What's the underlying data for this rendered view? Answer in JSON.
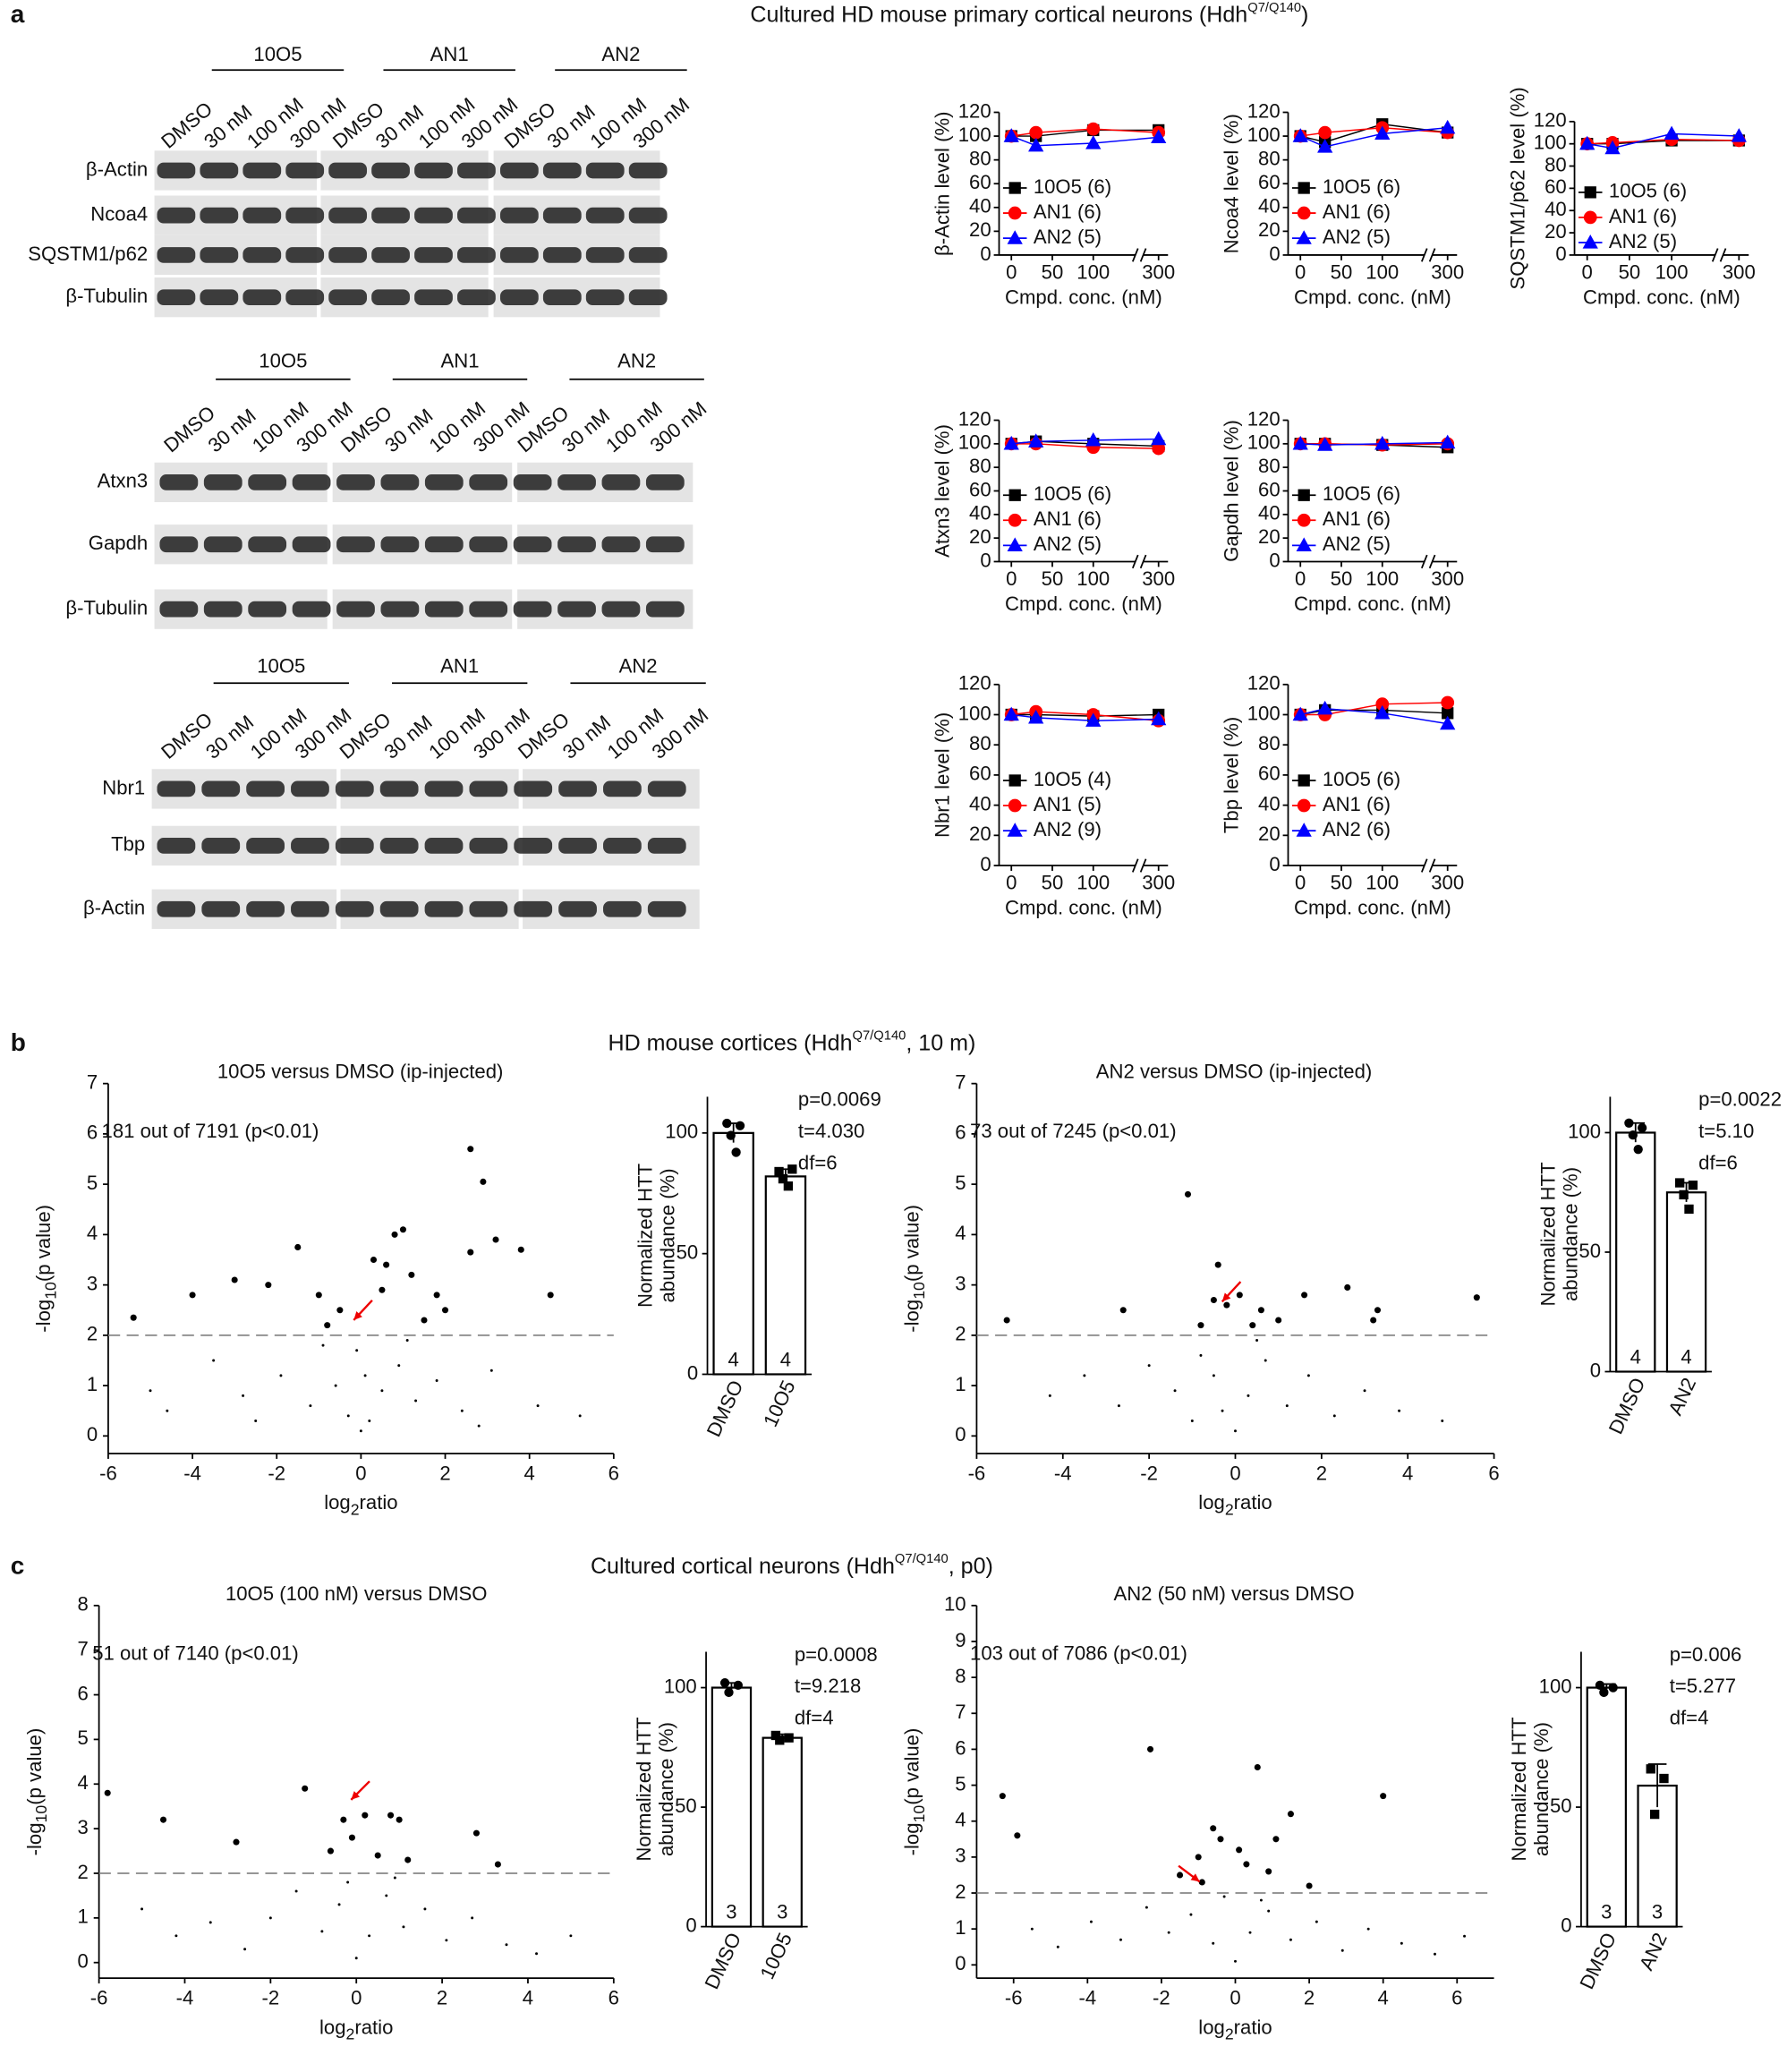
{
  "headers": [
    {
      "label": "a",
      "text": "Cultured HD mouse primary cortical neurons (Hdh",
      "sup": "Q7/Q140",
      "end": ")"
    },
    {
      "label": "b",
      "text": "HD mouse cortices (Hdh",
      "sup": "Q7/Q140",
      "end": ", 10 m)"
    },
    {
      "label": "c",
      "text": "Cultured cortical neurons (Hdh",
      "sup": "Q7/Q140",
      "end": ", p0)"
    }
  ],
  "blots": [
    {
      "groups": [
        "10O5",
        "AN1",
        "AN2"
      ],
      "lanes": [
        "DMSO",
        "30 nM",
        "100 nM",
        "300 nM"
      ],
      "rows": [
        "β-Actin",
        "Ncoa4",
        "SQSTM1/p62",
        "β-Tubulin"
      ]
    },
    {
      "groups": [
        "10O5",
        "AN1",
        "AN2"
      ],
      "lanes": [
        "DMSO",
        "30 nM",
        "100 nM",
        "300 nM"
      ],
      "rows": [
        "Atxn3",
        "Gapdh",
        "β-Tubulin"
      ]
    },
    {
      "groups": [
        "10O5",
        "AN1",
        "AN2"
      ],
      "lanes": [
        "DMSO",
        "30 nM",
        "100 nM",
        "300 nM"
      ],
      "rows": [
        "Nbr1",
        "Tbp",
        "β-Actin"
      ]
    }
  ],
  "chart_data": [
    {
      "type": "line",
      "y_label": "β-Actin level (%)",
      "x_label": "Cmpd. conc. (nM)",
      "x": [
        0,
        30,
        100,
        300
      ],
      "xlim": [
        -15,
        320
      ],
      "axis_break": [
        150,
        270
      ],
      "xticks": [
        0,
        50,
        100,
        300
      ],
      "ylim": [
        0,
        120
      ],
      "yticks": [
        0,
        20,
        40,
        60,
        80,
        100,
        120
      ],
      "series": [
        {
          "name": "10O5 (6)",
          "color": "#000000",
          "marker": "square",
          "values": [
            100,
            100,
            105,
            105
          ]
        },
        {
          "name": "AN1 (6)",
          "color": "#ff0000",
          "marker": "circle",
          "values": [
            100,
            103,
            106,
            103
          ]
        },
        {
          "name": "AN2 (5)",
          "color": "#0000ff",
          "marker": "triangle",
          "values": [
            100,
            92,
            94,
            99
          ]
        }
      ]
    },
    {
      "type": "line",
      "y_label": "Ncoa4 level (%)",
      "x_label": "Cmpd. conc. (nM)",
      "x": [
        0,
        30,
        100,
        300
      ],
      "xlim": [
        -15,
        320
      ],
      "axis_break": [
        150,
        270
      ],
      "xticks": [
        0,
        50,
        100,
        300
      ],
      "ylim": [
        0,
        120
      ],
      "yticks": [
        0,
        20,
        40,
        60,
        80,
        100,
        120
      ],
      "series": [
        {
          "name": "10O5 (6)",
          "color": "#000000",
          "marker": "square",
          "values": [
            100,
            95,
            110,
            103
          ]
        },
        {
          "name": "AN1 (6)",
          "color": "#ff0000",
          "marker": "circle",
          "values": [
            100,
            103,
            107,
            103
          ]
        },
        {
          "name": "AN2 (5)",
          "color": "#0000ff",
          "marker": "triangle",
          "values": [
            100,
            91,
            102,
            107
          ]
        }
      ]
    },
    {
      "type": "line",
      "y_label": "SQSTM1/p62 level (%)",
      "x_label": "Cmpd. conc. (nM)",
      "x": [
        0,
        30,
        100,
        300
      ],
      "xlim": [
        -15,
        320
      ],
      "axis_break": [
        150,
        270
      ],
      "xticks": [
        0,
        50,
        100,
        300
      ],
      "ylim": [
        0,
        120
      ],
      "yticks": [
        0,
        20,
        40,
        60,
        80,
        100,
        120
      ],
      "series": [
        {
          "name": "10O5 (6)",
          "color": "#000000",
          "marker": "square",
          "values": [
            100,
            100,
            103,
            103
          ]
        },
        {
          "name": "AN1 (6)",
          "color": "#ff0000",
          "marker": "circle",
          "values": [
            100,
            101,
            104,
            103
          ]
        },
        {
          "name": "AN2 (5)",
          "color": "#0000ff",
          "marker": "triangle",
          "values": [
            100,
            96,
            109,
            107
          ]
        }
      ]
    },
    {
      "type": "line",
      "y_label": "Atxn3 level (%)",
      "x_label": "Cmpd. conc. (nM)",
      "x": [
        0,
        30,
        100,
        300
      ],
      "xlim": [
        -15,
        320
      ],
      "axis_break": [
        150,
        270
      ],
      "xticks": [
        0,
        50,
        100,
        300
      ],
      "ylim": [
        0,
        120
      ],
      "yticks": [
        0,
        20,
        40,
        60,
        80,
        100,
        120
      ],
      "series": [
        {
          "name": "10O5 (6)",
          "color": "#000000",
          "marker": "square",
          "values": [
            100,
            102,
            100,
            98
          ]
        },
        {
          "name": "AN1 (6)",
          "color": "#ff0000",
          "marker": "circle",
          "values": [
            100,
            100,
            97,
            96
          ]
        },
        {
          "name": "AN2 (5)",
          "color": "#0000ff",
          "marker": "triangle",
          "values": [
            100,
            102,
            103,
            104
          ]
        }
      ]
    },
    {
      "type": "line",
      "y_label": "Gapdh level (%)",
      "x_label": "Cmpd. conc. (nM)",
      "x": [
        0,
        30,
        100,
        300
      ],
      "xlim": [
        -15,
        320
      ],
      "axis_break": [
        150,
        270
      ],
      "xticks": [
        0,
        50,
        100,
        300
      ],
      "ylim": [
        0,
        120
      ],
      "yticks": [
        0,
        20,
        40,
        60,
        80,
        100,
        120
      ],
      "series": [
        {
          "name": "10O5 (6)",
          "color": "#000000",
          "marker": "square",
          "values": [
            100,
            100,
            99,
            97
          ]
        },
        {
          "name": "AN1 (6)",
          "color": "#ff0000",
          "marker": "circle",
          "values": [
            100,
            100,
            99,
            100
          ]
        },
        {
          "name": "AN2 (5)",
          "color": "#0000ff",
          "marker": "triangle",
          "values": [
            100,
            99,
            100,
            101
          ]
        }
      ]
    },
    {
      "type": "line",
      "y_label": "Nbr1 level (%)",
      "x_label": "Cmpd. conc. (nM)",
      "x": [
        0,
        30,
        100,
        300
      ],
      "xlim": [
        -15,
        320
      ],
      "axis_break": [
        150,
        270
      ],
      "xticks": [
        0,
        50,
        100,
        300
      ],
      "ylim": [
        0,
        120
      ],
      "yticks": [
        0,
        20,
        40,
        60,
        80,
        100,
        120
      ],
      "series": [
        {
          "name": "10O5 (4)",
          "color": "#000000",
          "marker": "square",
          "values": [
            100,
            100,
            99,
            100
          ]
        },
        {
          "name": "AN1 (5)",
          "color": "#ff0000",
          "marker": "circle",
          "values": [
            100,
            102,
            100,
            96
          ]
        },
        {
          "name": "AN2 (9)",
          "color": "#0000ff",
          "marker": "triangle",
          "values": [
            100,
            98,
            96,
            97
          ]
        }
      ]
    },
    {
      "type": "line",
      "y_label": "Tbp level (%)",
      "x_label": "Cmpd. conc. (nM)",
      "x": [
        0,
        30,
        100,
        300
      ],
      "xlim": [
        -15,
        320
      ],
      "axis_break": [
        150,
        270
      ],
      "xticks": [
        0,
        50,
        100,
        300
      ],
      "ylim": [
        0,
        120
      ],
      "yticks": [
        0,
        20,
        40,
        60,
        80,
        100,
        120
      ],
      "series": [
        {
          "name": "10O5 (6)",
          "color": "#000000",
          "marker": "square",
          "values": [
            100,
            103,
            103,
            101
          ]
        },
        {
          "name": "AN1 (6)",
          "color": "#ff0000",
          "marker": "circle",
          "values": [
            100,
            100,
            107,
            108
          ]
        },
        {
          "name": "AN2 (6)",
          "color": "#0000ff",
          "marker": "triangle",
          "values": [
            100,
            104,
            101,
            94
          ]
        }
      ]
    },
    {
      "type": "scatter",
      "title": "10O5 versus DMSO (ip-injected)",
      "annotation": "181 out of 7191 (p<0.01)",
      "x_label": {
        "pre": "log",
        "sub": "2",
        "post": "ratio"
      },
      "y_label": {
        "pre": "-log",
        "sub": "10",
        "post": "(p value)"
      },
      "x": [
        2.6,
        2.9,
        3.2,
        3.8,
        2.6,
        4.5,
        -4,
        -3,
        -2.2,
        -1.5,
        -1,
        0.6,
        1.0,
        0.8,
        1.2,
        0.3,
        -0.5,
        1.5,
        -5.4,
        0.5,
        1.8,
        -0.8,
        2.0,
        -3.5,
        -2.8,
        -1.9,
        -1.2,
        -0.6,
        -0.3,
        0,
        0.2,
        0.5,
        0.9,
        1.3,
        1.8,
        2.4,
        3.1,
        4.2,
        -4.6,
        -0.1,
        0.1,
        -0.9,
        1.1,
        -2.5,
        2.8,
        5.2,
        -5.0
      ],
      "values": [
        5.7,
        5.05,
        3.9,
        3.7,
        3.65,
        2.8,
        2.8,
        3.1,
        3.0,
        3.75,
        2.8,
        3.4,
        4.1,
        4.0,
        3.2,
        3.5,
        2.5,
        2.3,
        2.35,
        2.9,
        2.8,
        2.2,
        2.5,
        1.5,
        0.8,
        1.2,
        0.6,
        1.0,
        0.4,
        0.1,
        0.3,
        0.9,
        1.4,
        0.7,
        1.1,
        0.5,
        1.3,
        0.6,
        0.5,
        1.7,
        1.2,
        1.8,
        1.9,
        0.3,
        0.2,
        0.4,
        0.9
      ],
      "threshold": 2,
      "color": "#000000",
      "xlim": [
        -6,
        6
      ],
      "xticks": [
        -6,
        -4,
        -2,
        0,
        2,
        4,
        6
      ],
      "ylim": [
        -0.35,
        7
      ],
      "yticks": [
        0,
        1,
        2,
        3,
        4,
        5,
        6,
        7
      ]
    },
    {
      "type": "bar",
      "y_label": [
        "Normalized HTT",
        "abundance (%)"
      ],
      "categories": [
        "DMSO",
        "10O5"
      ],
      "values": [
        100,
        82
      ],
      "errors": [
        4,
        3
      ],
      "points": [
        [
          104,
          103,
          99,
          92
        ],
        [
          84,
          85,
          81,
          78
        ]
      ],
      "n": [
        4,
        4
      ],
      "stats": [
        "p=0.0069",
        "t=4.030",
        "df=6"
      ],
      "ylim": [
        0,
        115
      ],
      "yticks": [
        0,
        50,
        100
      ]
    },
    {
      "type": "scatter",
      "title": "AN2 versus DMSO (ip-injected)",
      "annotation": "73 out of 7245 (p<0.01)",
      "x_label": {
        "pre": "log",
        "sub": "2",
        "post": "ratio"
      },
      "y_label": {
        "pre": "-log",
        "sub": "10",
        "post": "(p value)"
      },
      "x": [
        -1.1,
        -0.4,
        -0.5,
        -0.2,
        0.1,
        0.6,
        1.6,
        2.6,
        3.3,
        5.6,
        -2.6,
        -0.8,
        0.4,
        1.0,
        3.2,
        -5.3,
        -4.3,
        -3.5,
        -2.7,
        -2.0,
        -1.4,
        -0.8,
        -0.3,
        0,
        0.3,
        0.7,
        1.2,
        1.7,
        2.3,
        3.0,
        3.8,
        4.8,
        -1.0,
        0.5,
        -0.5
      ],
      "values": [
        4.8,
        3.4,
        2.7,
        2.6,
        2.8,
        2.5,
        2.8,
        2.95,
        2.5,
        2.75,
        2.5,
        2.2,
        2.2,
        2.3,
        2.3,
        2.3,
        0.8,
        1.2,
        0.6,
        1.4,
        0.9,
        1.6,
        0.5,
        0.1,
        0.8,
        1.5,
        0.6,
        1.2,
        0.4,
        0.9,
        0.5,
        0.3,
        0.3,
        1.9,
        1.2
      ],
      "threshold": 2,
      "color": "#000000",
      "xlim": [
        -6,
        6
      ],
      "xticks": [
        -6,
        -4,
        -2,
        0,
        2,
        4,
        6
      ],
      "ylim": [
        -0.35,
        7
      ],
      "yticks": [
        0,
        1,
        2,
        3,
        4,
        5,
        6,
        7
      ]
    },
    {
      "type": "bar",
      "y_label": [
        "Normalized HTT",
        "abundance (%)"
      ],
      "categories": [
        "DMSO",
        "AN2"
      ],
      "values": [
        100,
        75
      ],
      "errors": [
        4,
        4
      ],
      "points": [
        [
          104,
          102,
          99,
          93
        ],
        [
          79,
          78,
          74,
          68
        ]
      ],
      "n": [
        4,
        4
      ],
      "stats": [
        "p=0.0022",
        "t=5.10",
        "df=6"
      ],
      "ylim": [
        0,
        115
      ],
      "yticks": [
        0,
        50,
        100
      ]
    },
    {
      "type": "scatter",
      "title": "10O5 (100 nM) versus DMSO",
      "annotation": "51 out of 7140 (p<0.01)",
      "x_label": {
        "pre": "log",
        "sub": "2",
        "post": "ratio"
      },
      "y_label": {
        "pre": "-log",
        "sub": "10",
        "post": "(p value)"
      },
      "x": [
        -5.8,
        -4.5,
        -1.2,
        -0.3,
        0.2,
        0.8,
        1.0,
        2.8,
        3.3,
        -2.8,
        -0.6,
        0.5,
        -0.1,
        1.2,
        -5,
        -4.2,
        -3.4,
        -2.6,
        -2.0,
        -1.4,
        -0.8,
        -0.4,
        0,
        0.3,
        0.7,
        1.1,
        1.6,
        2.1,
        2.7,
        3.5,
        4.2,
        5.0,
        -0.2,
        0.9
      ],
      "values": [
        3.8,
        3.2,
        3.9,
        3.2,
        3.3,
        3.3,
        3.2,
        2.9,
        2.2,
        2.7,
        2.5,
        2.4,
        2.8,
        2.3,
        1.2,
        0.6,
        0.9,
        0.3,
        1.0,
        1.6,
        0.7,
        1.3,
        0.1,
        0.6,
        1.5,
        0.8,
        1.2,
        0.5,
        1.0,
        0.4,
        0.2,
        0.6,
        1.8,
        1.9
      ],
      "threshold": 2,
      "color": "#000000",
      "xlim": [
        -6,
        6
      ],
      "xticks": [
        -6,
        -4,
        -2,
        0,
        2,
        4,
        6
      ],
      "ylim": [
        -0.35,
        8
      ],
      "yticks": [
        0,
        1,
        2,
        3,
        4,
        5,
        6,
        7,
        8
      ]
    },
    {
      "type": "bar",
      "y_label": [
        "Normalized HTT",
        "abundance (%)"
      ],
      "categories": [
        "DMSO",
        "10O5"
      ],
      "values": [
        100,
        79
      ],
      "errors": [
        2,
        1.5
      ],
      "points": [
        [
          102,
          101,
          98
        ],
        [
          80,
          79,
          78
        ]
      ],
      "n": [
        3,
        3
      ],
      "stats": [
        "p=0.0008",
        "t=9.218",
        "df=4"
      ],
      "ylim": [
        0,
        115
      ],
      "yticks": [
        0,
        50,
        100
      ]
    },
    {
      "type": "scatter",
      "title": "AN2 (50 nM) versus DMSO",
      "annotation": "103 out of 7086 (p<0.01)",
      "x_label": {
        "pre": "log",
        "sub": "2",
        "post": "ratio"
      },
      "y_label": {
        "pre": "-log",
        "sub": "10",
        "post": "(p value)"
      },
      "x": [
        -6.3,
        -5.9,
        -2.3,
        0.6,
        1.5,
        4.0,
        -0.4,
        -0.6,
        -1.0,
        0.1,
        0.9,
        -1.5,
        1.1,
        -0.9,
        0.3,
        2.0,
        -5.5,
        -4.8,
        -3.9,
        -3.1,
        -2.4,
        -1.8,
        -1.2,
        -0.6,
        0,
        0.4,
        0.9,
        1.5,
        2.2,
        2.9,
        3.6,
        4.5,
        5.4,
        6.2,
        -0.3,
        0.7
      ],
      "values": [
        4.7,
        3.6,
        6.0,
        5.5,
        4.2,
        4.7,
        3.5,
        3.8,
        3.0,
        3.2,
        2.6,
        2.5,
        3.5,
        2.3,
        2.8,
        2.2,
        1.0,
        0.5,
        1.2,
        0.7,
        1.6,
        0.9,
        1.4,
        0.6,
        0.1,
        0.9,
        1.5,
        0.7,
        1.2,
        0.4,
        1.0,
        0.6,
        0.3,
        0.8,
        1.9,
        1.8
      ],
      "threshold": 2,
      "color": "#000000",
      "xlim": [
        -7,
        7
      ],
      "xticks": [
        -6,
        -4,
        -2,
        0,
        2,
        4,
        6
      ],
      "ylim": [
        -0.37,
        10
      ],
      "yticks": [
        0,
        1,
        2,
        3,
        4,
        5,
        6,
        7,
        8,
        9,
        10
      ]
    },
    {
      "type": "bar",
      "y_label": [
        "Normalized HTT",
        "abundance (%)"
      ],
      "categories": [
        "DMSO",
        "AN2"
      ],
      "values": [
        100,
        59
      ],
      "errors": [
        1.5,
        9
      ],
      "points": [
        [
          101,
          100,
          98
        ],
        [
          66,
          62,
          47
        ]
      ],
      "n": [
        3,
        3
      ],
      "stats": [
        "p=0.006",
        "t=5.277",
        "df=4"
      ],
      "ylim": [
        0,
        115
      ],
      "yticks": [
        0,
        50,
        100
      ]
    }
  ]
}
